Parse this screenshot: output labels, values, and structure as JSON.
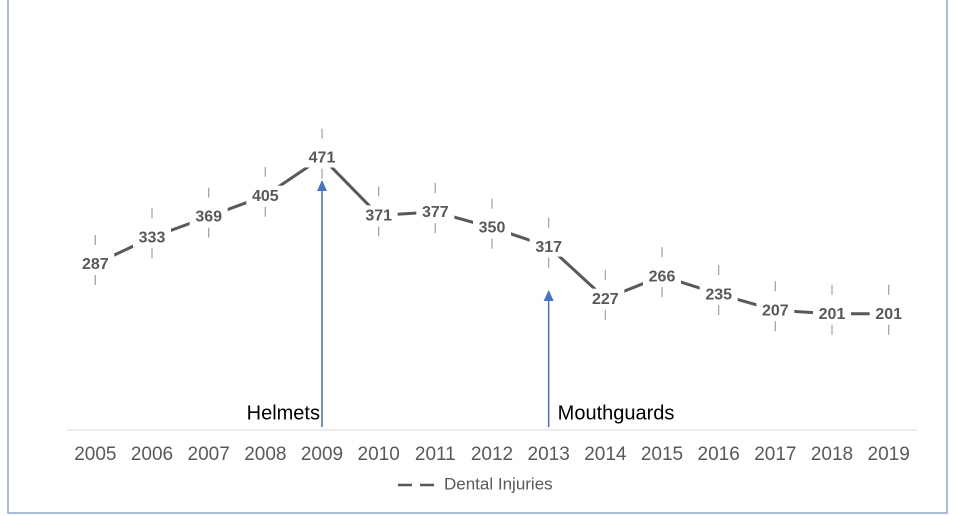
{
  "chart_data": {
    "type": "line",
    "categories": [
      "2005",
      "2006",
      "2007",
      "2008",
      "2009",
      "2010",
      "2011",
      "2012",
      "2013",
      "2014",
      "2015",
      "2016",
      "2017",
      "2018",
      "2019"
    ],
    "series": [
      {
        "name": "Dental Injuries",
        "color": "#595959",
        "values": [
          287,
          333,
          369,
          405,
          471,
          371,
          377,
          350,
          317,
          227,
          266,
          235,
          207,
          201,
          201
        ],
        "errors": [
          50,
          50,
          50,
          50,
          50,
          50,
          50,
          50,
          50,
          50,
          50,
          50,
          50,
          50,
          50
        ]
      }
    ],
    "ylim": [
      0,
      700
    ],
    "annotations": [
      {
        "text": "Helmets",
        "category": "2009"
      },
      {
        "text": "Mouthguards",
        "category": "2013"
      }
    ],
    "annotation_color": "#4472c4",
    "legend": "bottom"
  }
}
